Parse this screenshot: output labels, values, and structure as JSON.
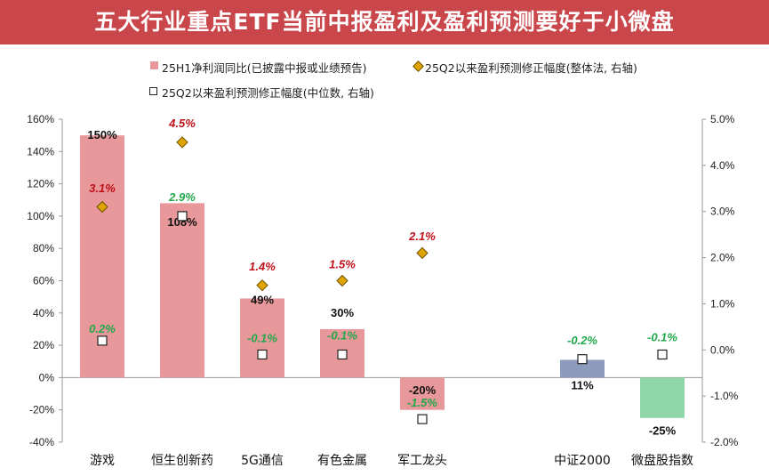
{
  "title": "五大行业重点ETF当前中报盈利及盈利预测要好于小微盘",
  "legend": {
    "bar": "25H1净利润同比(已披露中报或业绩预告)",
    "diamond": "25Q2以来盈利预测修正幅度(整体法, 右轴)",
    "square": "25Q2以来盈利预测修正幅度(中位数, 右轴)"
  },
  "colors": {
    "bar_main": "#e8989a",
    "bar_csi2000": "#8d9bbd",
    "bar_micro": "#8fd7a8",
    "diamond_fill": "#e0a400",
    "positive_label": "#c0101a",
    "negative_label": "#22a84a",
    "title_bg": "#c9474b"
  },
  "chart_data": {
    "type": "bar",
    "categories": [
      "游戏",
      "恒生创新药",
      "5G通信",
      "有色金属",
      "军工龙头",
      "中证2000",
      "微盘股指数"
    ],
    "slot_count": 8,
    "slots": [
      0,
      1,
      2,
      3,
      4,
      6,
      7
    ],
    "series": [
      {
        "name": "25H1净利润同比(已披露中报或业绩预告)",
        "axis": "left",
        "values": [
          150,
          108,
          49,
          30,
          -20,
          11,
          -25
        ],
        "labels": [
          "150%",
          "108%",
          "49%",
          "30%",
          "-20%",
          "11%",
          "-25%"
        ],
        "label_values": [
          150,
          96,
          48,
          40,
          -8,
          -5,
          -33
        ]
      },
      {
        "name": "25Q2以来盈利预测修正幅度(整体法, 右轴)",
        "axis": "right",
        "values": [
          3.1,
          4.5,
          1.4,
          1.5,
          2.1,
          null,
          null
        ],
        "labels": [
          "3.1%",
          "4.5%",
          "1.4%",
          "1.5%",
          "2.1%",
          "",
          ""
        ],
        "label_values": [
          3.5,
          4.9,
          1.8,
          1.85,
          2.45,
          null,
          null
        ]
      },
      {
        "name": "25Q2以来盈利预测修正幅度(中位数, 右轴)",
        "axis": "right",
        "values": [
          0.2,
          2.9,
          -0.1,
          -0.1,
          -1.5,
          -0.2,
          -0.1
        ],
        "labels": [
          "0.2%",
          "2.9%",
          "-0.1%",
          "-0.1%",
          "-1.5%",
          "-0.2%",
          "-0.1%"
        ],
        "label_values": [
          0.45,
          3.3,
          0.25,
          0.3,
          -1.15,
          0.2,
          0.27
        ]
      }
    ],
    "left_axis": {
      "min": -40,
      "max": 160,
      "step": 20,
      "tick_labels": [
        "-40%",
        "-20%",
        "0%",
        "20%",
        "40%",
        "60%",
        "80%",
        "100%",
        "120%",
        "140%",
        "160%"
      ]
    },
    "right_axis": {
      "min": -2.0,
      "max": 5.0,
      "step": 1.0,
      "tick_labels": [
        "-2.0%",
        "-1.0%",
        "0.0%",
        "1.0%",
        "2.0%",
        "3.0%",
        "4.0%",
        "5.0%"
      ]
    },
    "grid": false,
    "legend_position": "top"
  }
}
